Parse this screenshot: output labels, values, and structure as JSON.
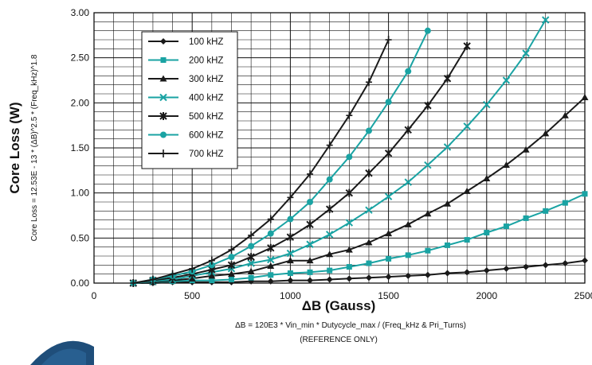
{
  "chart_data": {
    "type": "line",
    "xlabel": "ΔB (Gauss)",
    "ylabel": "Core Loss (W)",
    "ylabel_formula": "Core Loss = 12.53E - 13 * (ΔB)^2.5 * (Freq_kHz)^1.8",
    "x_formula": "ΔB = 120E3 * Vin_min * Dutycycle_max / (Freq_kHz & Pri_Turns)",
    "note": "(REFERENCE ONLY)",
    "xlim": [
      0,
      2500
    ],
    "ylim": [
      0,
      3
    ],
    "xticks": [
      "0",
      "500",
      "1000",
      "1500",
      "2000",
      "2500"
    ],
    "yticks": [
      "0.00",
      "0.50",
      "1.00",
      "1.50",
      "2.00",
      "2.50",
      "3.00"
    ],
    "grid": true,
    "legend_position": "top-left",
    "series": [
      {
        "name": "100 kHZ",
        "color": "#1a1a1a",
        "marker": "diamond",
        "x": [
          200,
          300,
          400,
          500,
          600,
          700,
          800,
          900,
          1000,
          1100,
          1200,
          1300,
          1400,
          1500,
          1600,
          1700,
          1800,
          1900,
          2000,
          2100,
          2200,
          2300,
          2400,
          2500
        ],
        "y": [
          0.0,
          0.0,
          0.01,
          0.01,
          0.01,
          0.01,
          0.02,
          0.02,
          0.03,
          0.03,
          0.04,
          0.05,
          0.06,
          0.07,
          0.08,
          0.09,
          0.11,
          0.12,
          0.14,
          0.16,
          0.18,
          0.2,
          0.22,
          0.25
        ]
      },
      {
        "name": "200 kHZ",
        "color": "#1aa3a3",
        "marker": "square",
        "x": [
          200,
          300,
          400,
          500,
          600,
          700,
          800,
          900,
          1000,
          1100,
          1200,
          1300,
          1400,
          1500,
          1600,
          1700,
          1800,
          1900,
          2000,
          2100,
          2200,
          2300,
          2400,
          2500
        ],
        "y": [
          0.0,
          0.01,
          0.02,
          0.03,
          0.03,
          0.04,
          0.06,
          0.09,
          0.11,
          0.12,
          0.14,
          0.18,
          0.22,
          0.27,
          0.31,
          0.36,
          0.42,
          0.48,
          0.56,
          0.63,
          0.72,
          0.8,
          0.89,
          0.99
        ]
      },
      {
        "name": "300 kHZ",
        "color": "#1a1a1a",
        "marker": "triangle",
        "x": [
          200,
          300,
          400,
          500,
          600,
          700,
          800,
          900,
          1000,
          1100,
          1200,
          1300,
          1400,
          1500,
          1600,
          1700,
          1800,
          1900,
          2000,
          2100,
          2200,
          2300,
          2400,
          2500
        ],
        "y": [
          0.0,
          0.01,
          0.03,
          0.05,
          0.08,
          0.1,
          0.13,
          0.19,
          0.25,
          0.25,
          0.32,
          0.37,
          0.45,
          0.55,
          0.65,
          0.77,
          0.88,
          1.02,
          1.16,
          1.31,
          1.48,
          1.66,
          1.86,
          2.06
        ]
      },
      {
        "name": "400 kHZ",
        "color": "#1aa3a3",
        "marker": "x",
        "x": [
          200,
          300,
          400,
          500,
          600,
          700,
          800,
          900,
          1000,
          1100,
          1200,
          1300,
          1400,
          1500,
          1600,
          1700,
          1800,
          1900,
          2000,
          2100,
          2200,
          2300
        ],
        "y": [
          0.0,
          0.02,
          0.04,
          0.08,
          0.12,
          0.16,
          0.22,
          0.26,
          0.33,
          0.43,
          0.54,
          0.67,
          0.81,
          0.96,
          1.12,
          1.31,
          1.51,
          1.74,
          1.98,
          2.25,
          2.55,
          2.92
        ]
      },
      {
        "name": "500 kHZ",
        "color": "#1a1a1a",
        "marker": "asterisk",
        "x": [
          200,
          300,
          400,
          500,
          600,
          700,
          800,
          900,
          1000,
          1100,
          1200,
          1300,
          1400,
          1500,
          1600,
          1700,
          1800,
          1900
        ],
        "y": [
          0.0,
          0.03,
          0.06,
          0.1,
          0.15,
          0.2,
          0.29,
          0.39,
          0.51,
          0.65,
          0.82,
          1.0,
          1.22,
          1.44,
          1.7,
          1.97,
          2.27,
          2.63
        ]
      },
      {
        "name": "600 kHZ",
        "color": "#1aa3a3",
        "marker": "circle",
        "x": [
          200,
          300,
          400,
          500,
          600,
          700,
          800,
          900,
          1000,
          1100,
          1200,
          1300,
          1400,
          1500,
          1600,
          1700
        ],
        "y": [
          0.0,
          0.04,
          0.08,
          0.13,
          0.2,
          0.29,
          0.41,
          0.55,
          0.71,
          0.9,
          1.15,
          1.4,
          1.69,
          2.01,
          2.35,
          2.8
        ]
      },
      {
        "name": "700 kHZ",
        "color": "#1a1a1a",
        "marker": "plus",
        "x": [
          200,
          300,
          400,
          500,
          600,
          700,
          800,
          900,
          1000,
          1100,
          1200,
          1300,
          1400,
          1500
        ],
        "y": [
          0.0,
          0.04,
          0.1,
          0.16,
          0.25,
          0.37,
          0.53,
          0.71,
          0.95,
          1.21,
          1.53,
          1.86,
          2.23,
          2.7
        ]
      }
    ]
  }
}
